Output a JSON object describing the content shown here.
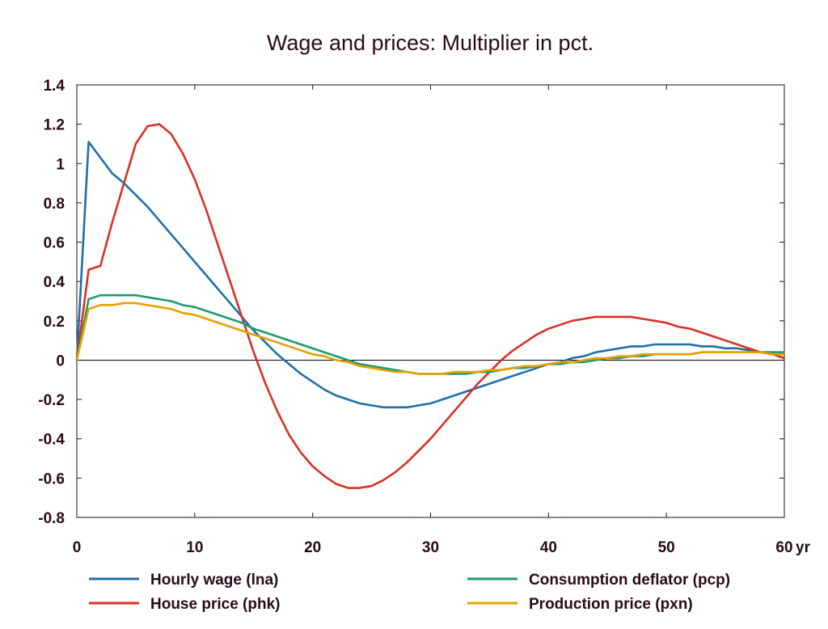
{
  "chart_data": {
    "type": "line",
    "title": "Wage and prices: Multiplier in pct.",
    "xlabel": "",
    "ylabel": "",
    "x_unit_label": "yr",
    "xlim": [
      0,
      60
    ],
    "ylim": [
      -0.8,
      1.4
    ],
    "x_ticks": [
      "0",
      "10",
      "20",
      "30",
      "40",
      "50",
      "60"
    ],
    "y_ticks": [
      "1.4",
      "1.2",
      "1",
      "0.8",
      "0.6",
      "0.4",
      "0.2",
      "0",
      "-0.2",
      "-0.4",
      "-0.6",
      "-0.8"
    ],
    "x": [
      0,
      1,
      2,
      3,
      4,
      5,
      6,
      7,
      8,
      9,
      10,
      11,
      12,
      13,
      14,
      15,
      16,
      17,
      18,
      19,
      20,
      21,
      22,
      23,
      24,
      25,
      26,
      27,
      28,
      29,
      30,
      31,
      32,
      33,
      34,
      35,
      36,
      37,
      38,
      39,
      40,
      41,
      42,
      43,
      44,
      45,
      46,
      47,
      48,
      49,
      50,
      51,
      52,
      53,
      54,
      55,
      56,
      57,
      58,
      59,
      60
    ],
    "legend_position": "bottom",
    "series": [
      {
        "name": "Hourly wage (lna)",
        "color": "#1f6fa8",
        "values": [
          0,
          1.11,
          1.03,
          0.95,
          0.9,
          0.84,
          0.78,
          0.71,
          0.64,
          0.57,
          0.5,
          0.43,
          0.36,
          0.29,
          0.22,
          0.15,
          0.09,
          0.03,
          -0.02,
          -0.07,
          -0.11,
          -0.15,
          -0.18,
          -0.2,
          -0.22,
          -0.23,
          -0.24,
          -0.24,
          -0.24,
          -0.23,
          -0.22,
          -0.2,
          -0.18,
          -0.16,
          -0.14,
          -0.12,
          -0.1,
          -0.08,
          -0.06,
          -0.04,
          -0.02,
          -0.01,
          0.01,
          0.02,
          0.04,
          0.05,
          0.06,
          0.07,
          0.07,
          0.08,
          0.08,
          0.08,
          0.08,
          0.07,
          0.07,
          0.06,
          0.06,
          0.05,
          0.04,
          0.04,
          0.03
        ]
      },
      {
        "name": "House price (phk)",
        "color": "#d93025",
        "values": [
          0,
          0.46,
          0.48,
          0.7,
          0.9,
          1.1,
          1.19,
          1.2,
          1.15,
          1.05,
          0.92,
          0.76,
          0.58,
          0.4,
          0.22,
          0.04,
          -0.12,
          -0.26,
          -0.38,
          -0.47,
          -0.54,
          -0.59,
          -0.63,
          -0.65,
          -0.65,
          -0.64,
          -0.61,
          -0.57,
          -0.52,
          -0.46,
          -0.4,
          -0.33,
          -0.26,
          -0.19,
          -0.12,
          -0.06,
          0,
          0.05,
          0.09,
          0.13,
          0.16,
          0.18,
          0.2,
          0.21,
          0.22,
          0.22,
          0.22,
          0.22,
          0.21,
          0.2,
          0.19,
          0.17,
          0.16,
          0.14,
          0.12,
          0.1,
          0.08,
          0.06,
          0.04,
          0.03,
          0.01
        ]
      },
      {
        "name": "Consumption deflator (pcp)",
        "color": "#1e9a70",
        "values": [
          0,
          0.31,
          0.33,
          0.33,
          0.33,
          0.33,
          0.32,
          0.31,
          0.3,
          0.28,
          0.27,
          0.25,
          0.23,
          0.21,
          0.19,
          0.16,
          0.14,
          0.12,
          0.1,
          0.08,
          0.06,
          0.04,
          0.02,
          0.0,
          -0.02,
          -0.03,
          -0.04,
          -0.05,
          -0.06,
          -0.07,
          -0.07,
          -0.07,
          -0.07,
          -0.07,
          -0.06,
          -0.06,
          -0.05,
          -0.04,
          -0.04,
          -0.03,
          -0.02,
          -0.02,
          -0.01,
          -0.01,
          0,
          0.01,
          0.01,
          0.02,
          0.02,
          0.03,
          0.03,
          0.03,
          0.03,
          0.04,
          0.04,
          0.04,
          0.04,
          0.04,
          0.04,
          0.04,
          0.04
        ]
      },
      {
        "name": "Production price (pxn)",
        "color": "#e8a000",
        "values": [
          0,
          0.26,
          0.28,
          0.28,
          0.29,
          0.29,
          0.28,
          0.27,
          0.26,
          0.24,
          0.23,
          0.21,
          0.19,
          0.17,
          0.15,
          0.13,
          0.11,
          0.09,
          0.07,
          0.05,
          0.03,
          0.02,
          0.0,
          -0.01,
          -0.03,
          -0.04,
          -0.05,
          -0.06,
          -0.06,
          -0.07,
          -0.07,
          -0.07,
          -0.06,
          -0.06,
          -0.06,
          -0.05,
          -0.05,
          -0.04,
          -0.03,
          -0.03,
          -0.02,
          -0.01,
          -0.01,
          0,
          0.01,
          0.01,
          0.02,
          0.02,
          0.03,
          0.03,
          0.03,
          0.03,
          0.03,
          0.04,
          0.04,
          0.04,
          0.04,
          0.04,
          0.04,
          0.03,
          0.03
        ]
      }
    ]
  }
}
